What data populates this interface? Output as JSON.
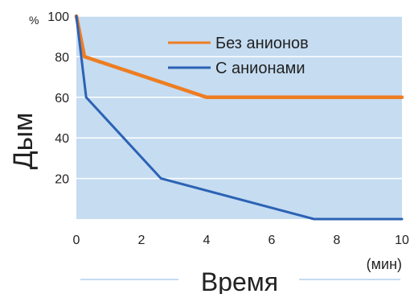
{
  "chart_data": {
    "type": "line",
    "xlabel": "Время",
    "xunit": "(мин)",
    "ylabel": "Дым",
    "yunit": "%",
    "xlim": [
      0,
      10
    ],
    "ylim": [
      0,
      100
    ],
    "xticks": [
      "0",
      "2",
      "4",
      "6",
      "8",
      "10"
    ],
    "yticks": [
      "20",
      "40",
      "60",
      "80",
      "100"
    ],
    "grid": true,
    "legend_position": "top-right",
    "series": [
      {
        "name": "Без анионов",
        "color": "#ee7d22",
        "x": [
          0,
          0.25,
          4,
          10
        ],
        "y": [
          100,
          80,
          60,
          60
        ]
      },
      {
        "name": "С анионами",
        "color": "#2c62b4",
        "x": [
          0,
          0.3,
          2.6,
          7.3,
          10
        ],
        "y": [
          100,
          60,
          20,
          0,
          0
        ]
      }
    ],
    "colors": {
      "plot_background": "#c5dcf1",
      "gridline": "#ffffff",
      "axis_text": "#222222"
    }
  }
}
